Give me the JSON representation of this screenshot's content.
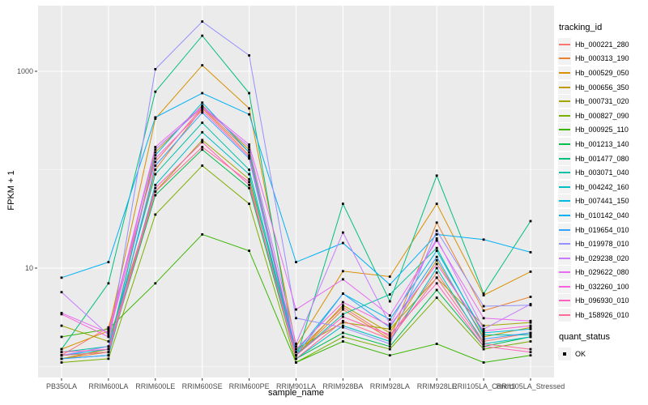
{
  "chart_data": {
    "type": "line",
    "title": "",
    "xlabel": "sample_name",
    "ylabel": "FPKM + 1",
    "y_scale": "log10",
    "ylim": [
      0.82,
      4500
    ],
    "y_major_ticks": [
      10,
      1000
    ],
    "y_minor_ticks": [
      1,
      100
    ],
    "grid": true,
    "panel_bg": "#EBEBEB",
    "grid_color": "#FFFFFF",
    "point_color": "#000000",
    "axis_text_color": "#4D4D4D",
    "legend_position": "right",
    "categories": [
      "PB350LA",
      "RRIM600LA",
      "RRIM600LE",
      "RRIM600SE",
      "RRIM600PE",
      "RRIM901LA",
      "RRIM928BA",
      "RRIM928LA",
      "RRIM928LE",
      "RRII105LA_Control",
      "RRII105LA_Stressed"
    ],
    "series": [
      {
        "name": "Hb_000221_280",
        "color": "#F8766D",
        "values": [
          1.3,
          2.5,
          120,
          430,
          150,
          1.4,
          4.0,
          2.0,
          9,
          1.8,
          2.2
        ]
      },
      {
        "name": "Hb_000313_190",
        "color": "#EA8331",
        "values": [
          1.2,
          1.4,
          100,
          420,
          140,
          1.3,
          3.8,
          1.9,
          29,
          3.7,
          5.1
        ]
      },
      {
        "name": "Hb_000529_050",
        "color": "#D89000",
        "values": [
          1.5,
          2.3,
          330,
          1150,
          420,
          1.6,
          9.3,
          8.2,
          45,
          5.3,
          9.2
        ]
      },
      {
        "name": "Hb_000656_350",
        "color": "#C09B00",
        "values": [
          1.2,
          1.5,
          150,
          450,
          160,
          1.3,
          4.2,
          2.2,
          12,
          2.0,
          2.5
        ]
      },
      {
        "name": "Hb_000731_020",
        "color": "#A3A500",
        "values": [
          2.6,
          1.8,
          60,
          200,
          80,
          1.5,
          2.8,
          2.4,
          8,
          2.6,
          2.8
        ]
      },
      {
        "name": "Hb_000827_090",
        "color": "#7CAE00",
        "values": [
          1.1,
          1.2,
          35,
          110,
          45,
          1.1,
          2.0,
          1.5,
          5,
          1.5,
          1.8
        ]
      },
      {
        "name": "Hb_000925_110",
        "color": "#39B600",
        "values": [
          2.0,
          2.4,
          7,
          22,
          15,
          1.1,
          1.8,
          1.3,
          1.7,
          1.1,
          1.3
        ]
      },
      {
        "name": "Hb_001213_140",
        "color": "#00BB4E",
        "values": [
          1.3,
          1.4,
          55,
          160,
          65,
          1.2,
          2.2,
          1.6,
          6,
          1.6,
          2.0
        ]
      },
      {
        "name": "Hb_001477_080",
        "color": "#00BF7D",
        "values": [
          1.5,
          7,
          620,
          2300,
          600,
          1.2,
          45,
          4.6,
          87,
          5.5,
          30
        ]
      },
      {
        "name": "Hb_003071_040",
        "color": "#00C1A3",
        "values": [
          1.4,
          1.6,
          90,
          300,
          100,
          1.3,
          3.4,
          5.4,
          16,
          2.1,
          2.1
        ]
      },
      {
        "name": "Hb_004242_160",
        "color": "#00BFC4",
        "values": [
          1.2,
          1.3,
          70,
          240,
          90,
          1.2,
          2.6,
          1.8,
          10,
          1.7,
          2.0
        ]
      },
      {
        "name": "Hb_007441_150",
        "color": "#00BAE0",
        "values": [
          1.3,
          1.5,
          140,
          480,
          150,
          1.4,
          5.5,
          3.0,
          15,
          2.2,
          2.4
        ]
      },
      {
        "name": "Hb_010142_040",
        "color": "#00B0F6",
        "values": [
          8,
          11.5,
          340,
          600,
          365,
          11.5,
          18,
          6.8,
          22,
          19.5,
          14.5
        ]
      },
      {
        "name": "Hb_019654_010",
        "color": "#35A2FF",
        "values": [
          1.2,
          1.3,
          110,
          380,
          130,
          1.3,
          5.5,
          2.5,
          13,
          1.9,
          2.2
        ]
      },
      {
        "name": "Hb_019978_010",
        "color": "#9590FF",
        "values": [
          1.3,
          1.6,
          1050,
          3200,
          1450,
          3.1,
          2.5,
          1.7,
          24,
          4.1,
          4.2
        ]
      },
      {
        "name": "Hb_029238_020",
        "color": "#C77CFF",
        "values": [
          5.7,
          2.1,
          160,
          430,
          170,
          1.7,
          23,
          2.7,
          20,
          2.4,
          4.3
        ]
      },
      {
        "name": "Hb_029622_080",
        "color": "#E76BF3",
        "values": [
          3.5,
          2.2,
          170,
          440,
          180,
          3.8,
          7.7,
          3.3,
          19,
          3.1,
          2.9
        ]
      },
      {
        "name": "Hb_032260_100",
        "color": "#FA62DB",
        "values": [
          3.4,
          2.0,
          130,
          400,
          135,
          1.5,
          4.5,
          2.6,
          11,
          2.3,
          2.6
        ]
      },
      {
        "name": "Hb_096930_010",
        "color": "#FF62BC",
        "values": [
          1.4,
          1.5,
          65,
          190,
          70,
          1.3,
          3.2,
          2.1,
          7,
          1.6,
          1.4
        ]
      },
      {
        "name": "Hb_158926_010",
        "color": "#FF6A98",
        "values": [
          1.3,
          1.4,
          60,
          170,
          75,
          1.2,
          2.9,
          1.9,
          8,
          1.7,
          1.5
        ]
      }
    ]
  },
  "legend": {
    "tracking_title": "tracking_id",
    "quant_title": "quant_status",
    "quant_items": [
      {
        "label": "OK"
      }
    ]
  }
}
